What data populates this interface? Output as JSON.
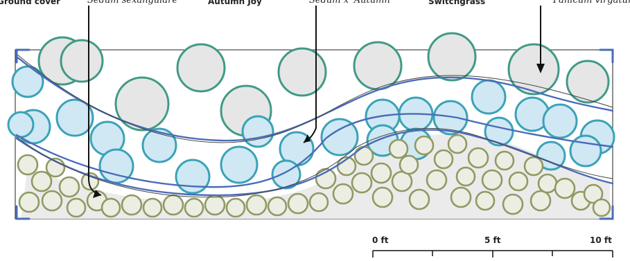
{
  "labels": {
    "groundcover": "Ground cover",
    "sedum_sexangulare": "Sedum sexangulare",
    "sedum_autumn_joy": "Autumn Joy",
    "sedum_x_autumn": "Sedum x 'Autumn",
    "switchgrass": "Switchgrass",
    "panicum_virgatum": "Panicum virgatum"
  },
  "scale_bar": {
    "labels": [
      "0 ft",
      "5 ft",
      "10 ft"
    ]
  },
  "colors": {
    "gray_circle_fill": "#e6e6e6",
    "gray_circle_stroke": "#3f9a86",
    "blue_circle_fill": "#cfe8f3",
    "blue_circle_stroke": "#3aa2b8",
    "olive_circle_stroke": "#8f9a63",
    "olive_circle_fill": "#eceee4",
    "bed_stroke": "#4a6bb8",
    "arrow": "#111111"
  }
}
